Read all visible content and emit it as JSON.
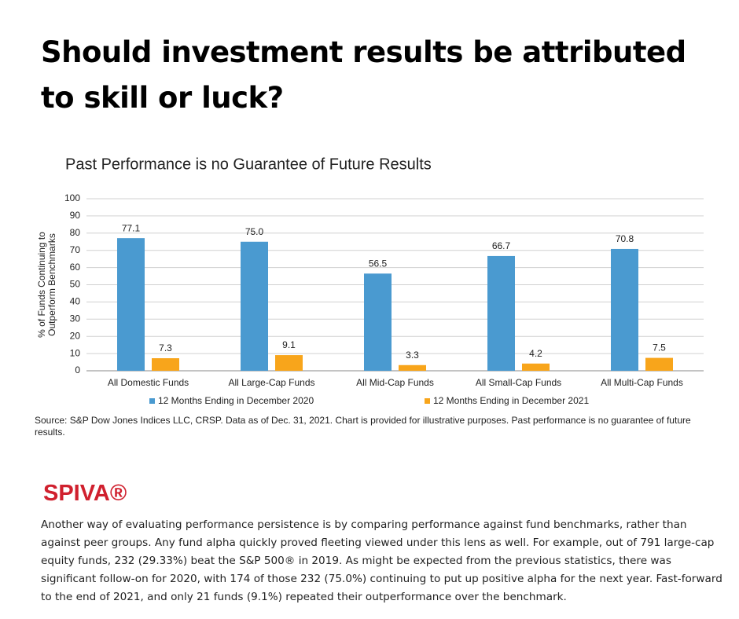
{
  "title": "Should investment results be attributed to skill or luck?",
  "chart_data": {
    "type": "bar",
    "title": "Past Performance is no Guarantee of Future Results",
    "ylabel": [
      "% of Funds Continuing to",
      "Outperform Benchmarks"
    ],
    "categories": [
      "All Domestic Funds",
      "All Large-Cap Funds",
      "All Mid-Cap Funds",
      "All Small-Cap Funds",
      "All Multi-Cap Funds"
    ],
    "series": [
      {
        "name": "12 Months Ending in December 2020",
        "color": "#4a9ad0",
        "values": [
          77.1,
          75.0,
          56.5,
          66.7,
          70.8
        ],
        "value_labels": [
          "77.1",
          "75.0",
          "56.5",
          "66.7",
          "70.8"
        ]
      },
      {
        "name": "12 Months Ending in December 2021",
        "color": "#f8a51b",
        "values": [
          7.3,
          9.1,
          3.3,
          4.2,
          7.5
        ],
        "value_labels": [
          "7.3",
          "9.1",
          "3.3",
          "4.2",
          "7.5"
        ]
      }
    ],
    "ylim": [
      0,
      100
    ],
    "yticks": [
      0,
      10,
      20,
      30,
      40,
      50,
      60,
      70,
      80,
      90,
      100
    ],
    "grid": true,
    "legend": "bottom"
  },
  "source": "Source: S&P Dow Jones Indices LLC, CRSP.  Data as of Dec. 31, 2021.  Chart is provided for illustrative purposes.  Past performance is no guarantee of future results.",
  "brand": "SPIVA®",
  "paragraph": "Another way of evaluating performance persistence is by comparing performance against fund benchmarks, rather than against peer groups. Any fund alpha quickly proved fleeting viewed under this lens as well. For example, out of 791 large-cap equity funds, 232 (29.33%) beat the S&P 500® in 2019. As might be expected from the previous statistics, there was significant follow-on for 2020, with 174 of those 232 (75.0%) continuing to put up positive alpha for the next year. Fast-forward to the end of 2021, and only 21 funds (9.1%) repeated their outperformance over the benchmark."
}
